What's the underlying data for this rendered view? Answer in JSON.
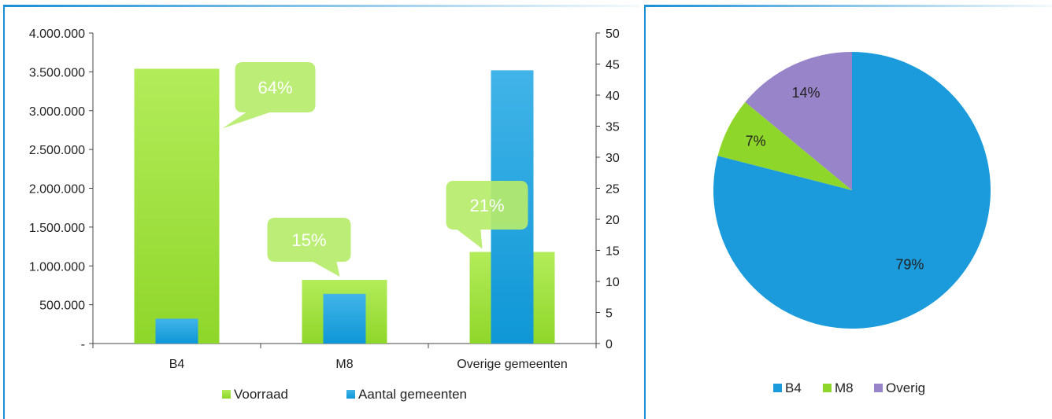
{
  "colors": {
    "voorraad_top": "#b3ec5a",
    "voorraad_bottom": "#8fd62a",
    "aantal_top": "#41b4e8",
    "aantal_bottom": "#0f97d6",
    "callout": "#b6eb6b",
    "callout_text": "#ffffff",
    "pie_b4": "#1b9bdc",
    "pie_m8": "#8fd62a",
    "pie_overig": "#9884c9",
    "frame": "#1a8fd6"
  },
  "chart_data": [
    {
      "type": "bar",
      "title": "",
      "xlabel": "",
      "ylabel": "",
      "categories": [
        "B4",
        "M8",
        "Overige gemeenten"
      ],
      "series": [
        {
          "name": "Voorraad",
          "axis": "left",
          "values": [
            3540000,
            820000,
            1180000
          ]
        },
        {
          "name": "Aantal gemeenten",
          "axis": "right",
          "values": [
            4,
            8,
            44
          ]
        }
      ],
      "ylim": [
        0,
        4000000
      ],
      "yticks": [
        0,
        500000,
        1000000,
        1500000,
        2000000,
        2500000,
        3000000,
        3500000,
        4000000
      ],
      "ytick_labels": [
        "-",
        "500.000",
        "1.000.000",
        "1.500.000",
        "2.000.000",
        "2.500.000",
        "3.000.000",
        "3.500.000",
        "4.000.000"
      ],
      "y2lim": [
        0,
        50
      ],
      "y2ticks": [
        0,
        5,
        10,
        15,
        20,
        25,
        30,
        35,
        40,
        45,
        50
      ],
      "annotations": [
        "64%",
        "15%",
        "21%"
      ],
      "legend": "bottom",
      "grid": false
    },
    {
      "type": "pie",
      "title": "",
      "labels": [
        "B4",
        "M8",
        "Overig"
      ],
      "values": [
        79,
        7,
        14
      ],
      "data_labels": [
        "79%",
        "7%",
        "14%"
      ],
      "legend": "bottom"
    }
  ]
}
